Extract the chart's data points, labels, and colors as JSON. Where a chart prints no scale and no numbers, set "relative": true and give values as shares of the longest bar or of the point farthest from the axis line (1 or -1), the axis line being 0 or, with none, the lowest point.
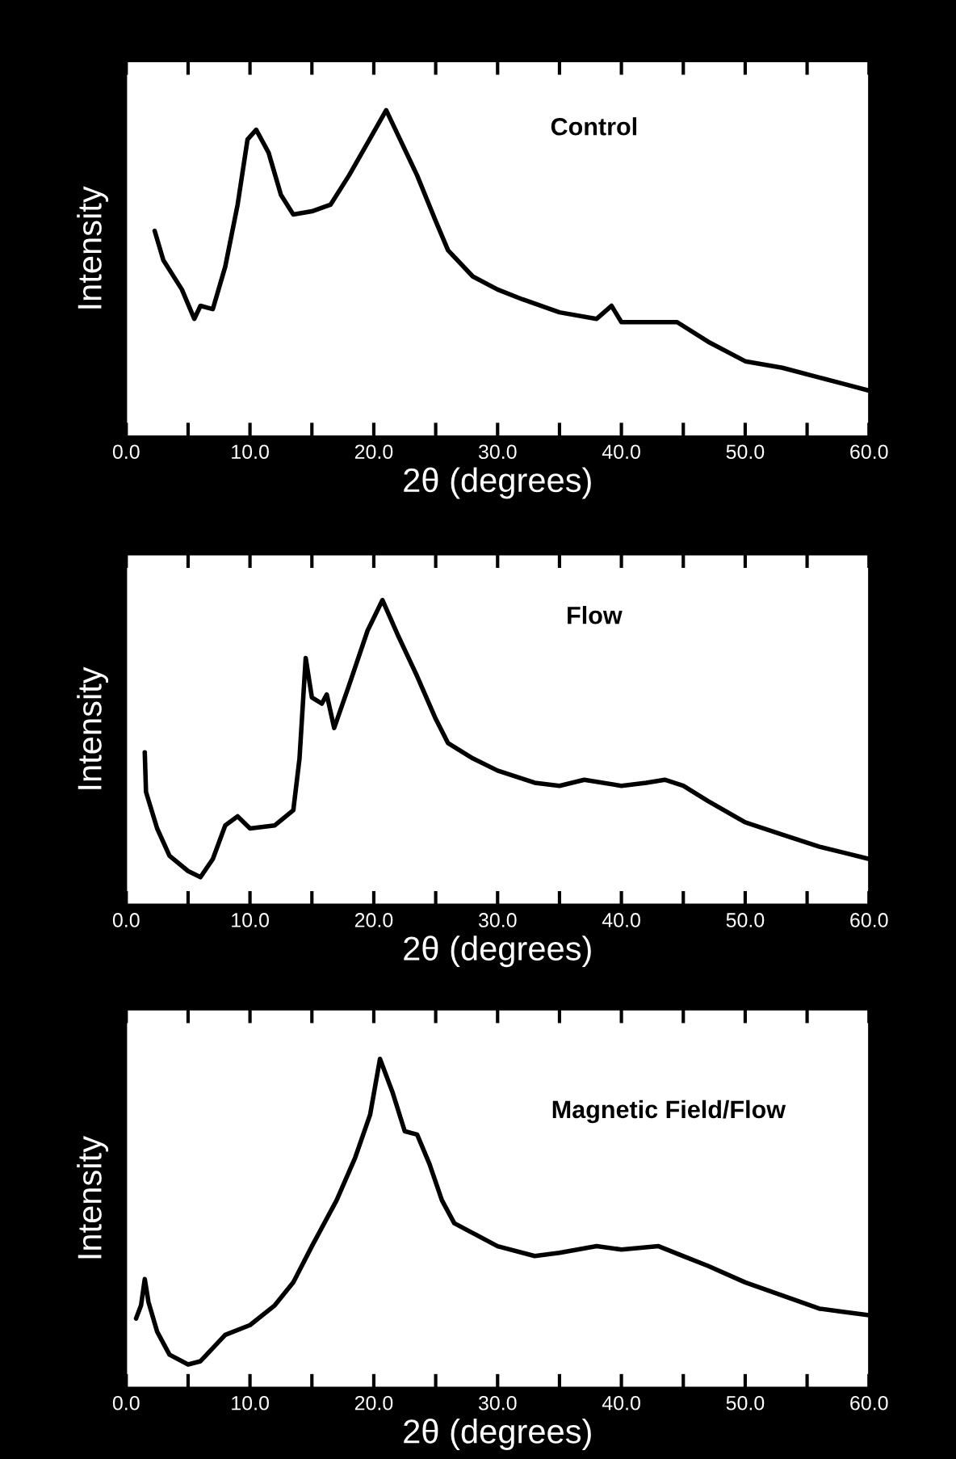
{
  "chart_data": [
    {
      "type": "line",
      "title": "Control",
      "xlabel": "2θ (degrees)",
      "ylabel": "Intensity",
      "relative": true,
      "xlim": [
        0,
        60
      ],
      "xticks": [
        {
          "value": 0,
          "label": "0.0"
        },
        {
          "value": 5,
          "label": null
        },
        {
          "value": 10,
          "label": "10.0"
        },
        {
          "value": 15,
          "label": null
        },
        {
          "value": 20,
          "label": "20.0"
        },
        {
          "value": 25,
          "label": null
        },
        {
          "value": 30,
          "label": "30.0"
        },
        {
          "value": 35,
          "label": null
        },
        {
          "value": 40,
          "label": "40.0"
        },
        {
          "value": 45,
          "label": null
        },
        {
          "value": 50,
          "label": "50.0"
        },
        {
          "value": 55,
          "label": null
        },
        {
          "value": 60,
          "label": "60.0"
        }
      ],
      "grid": false,
      "legend": false,
      "tick_labels": "x",
      "series": [
        {
          "color": "#000000",
          "x": [
            2.3,
            3,
            4.5,
            5.5,
            6,
            7,
            8,
            9,
            9.8,
            10.5,
            11.5,
            12.5,
            13.5,
            15,
            16.5,
            18,
            19.5,
            21,
            22,
            23.5,
            25,
            26,
            28,
            30,
            32,
            35,
            38,
            39.2,
            40,
            42,
            44.5,
            47,
            50,
            53,
            56,
            58,
            60
          ],
          "values": [
            0.63,
            0.54,
            0.45,
            0.36,
            0.4,
            0.39,
            0.52,
            0.71,
            0.91,
            0.94,
            0.87,
            0.74,
            0.68,
            0.69,
            0.71,
            0.8,
            0.9,
            1.0,
            0.92,
            0.8,
            0.66,
            0.57,
            0.49,
            0.45,
            0.42,
            0.38,
            0.36,
            0.4,
            0.35,
            0.35,
            0.35,
            0.29,
            0.23,
            0.21,
            0.18,
            0.16,
            0.14
          ]
        }
      ]
    },
    {
      "type": "line",
      "title": "Flow",
      "xlabel": "2θ (degrees)",
      "ylabel": "Intensity",
      "relative": true,
      "xlim": [
        0,
        60
      ],
      "xticks": [
        {
          "value": 0,
          "label": "0.0"
        },
        {
          "value": 5,
          "label": null
        },
        {
          "value": 10,
          "label": "10.0"
        },
        {
          "value": 15,
          "label": null
        },
        {
          "value": 20,
          "label": "20.0"
        },
        {
          "value": 25,
          "label": null
        },
        {
          "value": 30,
          "label": "30.0"
        },
        {
          "value": 35,
          "label": null
        },
        {
          "value": 40,
          "label": "40.0"
        },
        {
          "value": 45,
          "label": null
        },
        {
          "value": 50,
          "label": "50.0"
        },
        {
          "value": 55,
          "label": null
        },
        {
          "value": 60,
          "label": "60.0"
        }
      ],
      "grid": false,
      "legend": false,
      "tick_labels": "x",
      "series": [
        {
          "color": "#000000",
          "x": [
            1.5,
            1.6,
            2.5,
            3.5,
            5,
            6,
            7,
            8,
            9,
            10,
            12,
            13.5,
            14,
            14.5,
            15,
            15.8,
            16.2,
            16.8,
            18,
            19.5,
            20.7,
            22,
            23.5,
            25,
            26,
            28,
            30,
            33,
            35,
            37,
            40,
            42,
            43.5,
            45,
            47,
            50,
            53,
            56,
            58,
            60
          ],
          "values": [
            0.5,
            0.37,
            0.25,
            0.16,
            0.11,
            0.09,
            0.15,
            0.26,
            0.29,
            0.25,
            0.26,
            0.31,
            0.48,
            0.81,
            0.68,
            0.66,
            0.69,
            0.58,
            0.72,
            0.9,
            1.0,
            0.88,
            0.75,
            0.61,
            0.53,
            0.48,
            0.44,
            0.4,
            0.39,
            0.41,
            0.39,
            0.4,
            0.41,
            0.39,
            0.34,
            0.27,
            0.23,
            0.19,
            0.17,
            0.15
          ]
        }
      ]
    },
    {
      "type": "line",
      "title": "Magnetic Field/Flow",
      "xlabel": "2θ (degrees)",
      "ylabel": "Intensity",
      "relative": true,
      "xlim": [
        0,
        60
      ],
      "xticks": [
        {
          "value": 0,
          "label": "0.0"
        },
        {
          "value": 5,
          "label": null
        },
        {
          "value": 10,
          "label": "10.0"
        },
        {
          "value": 15,
          "label": null
        },
        {
          "value": 20,
          "label": "20.0"
        },
        {
          "value": 25,
          "label": null
        },
        {
          "value": 30,
          "label": "30.0"
        },
        {
          "value": 35,
          "label": null
        },
        {
          "value": 40,
          "label": "40.0"
        },
        {
          "value": 45,
          "label": null
        },
        {
          "value": 50,
          "label": "50.0"
        },
        {
          "value": 55,
          "label": null
        },
        {
          "value": 60,
          "label": "60.0"
        }
      ],
      "grid": false,
      "legend": false,
      "tick_labels": "x",
      "series": [
        {
          "color": "#000000",
          "x": [
            0.8,
            1.2,
            1.5,
            1.8,
            2.5,
            3.5,
            5,
            6,
            7,
            8,
            10,
            12,
            13.5,
            15,
            17,
            18.5,
            19.7,
            20.5,
            21.5,
            22.5,
            23.5,
            24.5,
            25.5,
            26.5,
            28,
            30,
            33,
            35,
            38,
            40,
            43,
            45,
            47,
            50,
            53,
            56,
            58,
            60
          ],
          "values": [
            0.21,
            0.25,
            0.33,
            0.26,
            0.17,
            0.1,
            0.07,
            0.08,
            0.12,
            0.16,
            0.19,
            0.25,
            0.32,
            0.43,
            0.57,
            0.7,
            0.83,
            1.0,
            0.9,
            0.78,
            0.77,
            0.68,
            0.57,
            0.5,
            0.47,
            0.43,
            0.4,
            0.41,
            0.43,
            0.42,
            0.43,
            0.4,
            0.37,
            0.32,
            0.28,
            0.24,
            0.23,
            0.22
          ]
        }
      ]
    }
  ]
}
